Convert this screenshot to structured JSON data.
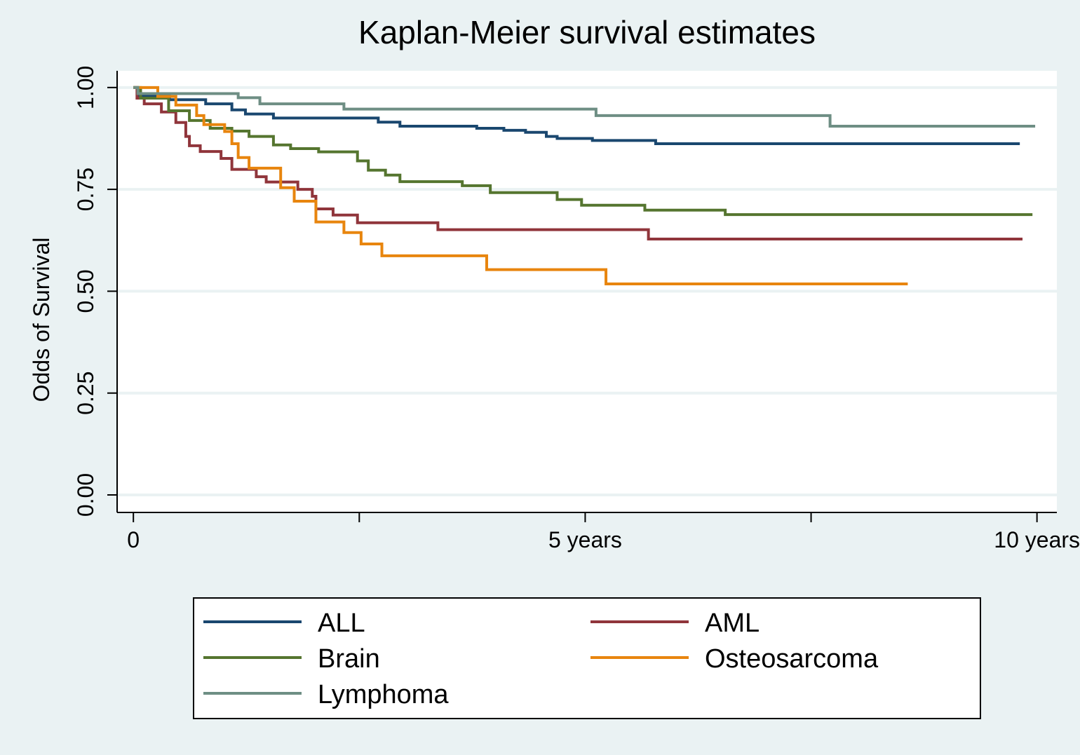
{
  "chart_data": {
    "type": "step",
    "title": "Kaplan-Meier survival estimates",
    "y_label": "Odds of Survival",
    "xlim": [
      -0.18,
      10.22
    ],
    "ylim": [
      -0.043,
      1.041
    ],
    "xticks": [
      0,
      {
        "value": 2.5,
        "label": null
      },
      {
        "value": 5,
        "label": "5 years"
      },
      {
        "value": 7.5,
        "label": null
      },
      {
        "value": 10,
        "label": "10 years"
      }
    ],
    "yticks": [
      {
        "value": 0,
        "label": "0.00"
      },
      {
        "value": 0.25,
        "label": "0.25"
      },
      {
        "value": 0.5,
        "label": "0.50"
      },
      {
        "value": 0.75,
        "label": "0.75"
      },
      {
        "value": 1,
        "label": "1.00"
      }
    ],
    "grid": true,
    "series": [
      {
        "name": "ALL",
        "color": "#1a476f",
        "x": [
          0,
          0.05,
          0.4,
          0.8,
          1.09,
          1.24,
          1.55,
          2.71,
          2.95,
          3.8,
          4.1,
          4.34,
          4.57,
          4.69,
          5.08,
          5.78,
          9.81
        ],
        "values": [
          1.0,
          0.98,
          0.97,
          0.96,
          0.945,
          0.935,
          0.925,
          0.915,
          0.905,
          0.9,
          0.895,
          0.89,
          0.88,
          0.875,
          0.87,
          0.862,
          0.862
        ]
      },
      {
        "name": "AML",
        "color": "#90353b",
        "x": [
          0,
          0.04,
          0.12,
          0.31,
          0.47,
          0.58,
          0.62,
          0.74,
          0.97,
          1.09,
          1.36,
          1.47,
          1.82,
          1.98,
          2.02,
          2.21,
          2.48,
          3.37,
          5.7,
          9.84
        ],
        "values": [
          1.0,
          0.974,
          0.96,
          0.94,
          0.914,
          0.88,
          0.857,
          0.843,
          0.826,
          0.799,
          0.781,
          0.768,
          0.75,
          0.733,
          0.702,
          0.687,
          0.668,
          0.651,
          0.628,
          0.628
        ]
      },
      {
        "name": "Brain",
        "color": "#55752f",
        "x": [
          0,
          0.08,
          0.39,
          0.62,
          0.85,
          1.09,
          1.28,
          1.55,
          1.74,
          2.05,
          2.48,
          2.6,
          2.79,
          2.95,
          3.64,
          3.95,
          4.69,
          4.96,
          5.66,
          6.55,
          9.95
        ],
        "values": [
          1.0,
          0.974,
          0.943,
          0.919,
          0.9,
          0.893,
          0.88,
          0.859,
          0.85,
          0.842,
          0.82,
          0.797,
          0.785,
          0.769,
          0.759,
          0.742,
          0.725,
          0.711,
          0.699,
          0.688,
          0.688
        ]
      },
      {
        "name": "Osteosarcoma",
        "color": "#e8850e",
        "x": [
          0,
          0.27,
          0.47,
          0.7,
          0.78,
          1.01,
          1.09,
          1.16,
          1.28,
          1.63,
          1.78,
          2.02,
          2.33,
          2.52,
          2.75,
          3.91,
          5.23,
          8.57
        ],
        "values": [
          1.0,
          0.978,
          0.957,
          0.931,
          0.909,
          0.892,
          0.862,
          0.828,
          0.802,
          0.754,
          0.721,
          0.67,
          0.644,
          0.616,
          0.587,
          0.553,
          0.518,
          0.518
        ]
      },
      {
        "name": "Lymphoma",
        "color": "#6e8e84",
        "x": [
          0,
          0.05,
          1.16,
          1.4,
          2.33,
          5.12,
          7.71,
          9.98
        ],
        "values": [
          1.0,
          0.985,
          0.975,
          0.96,
          0.947,
          0.931,
          0.905,
          0.905
        ]
      }
    ]
  }
}
